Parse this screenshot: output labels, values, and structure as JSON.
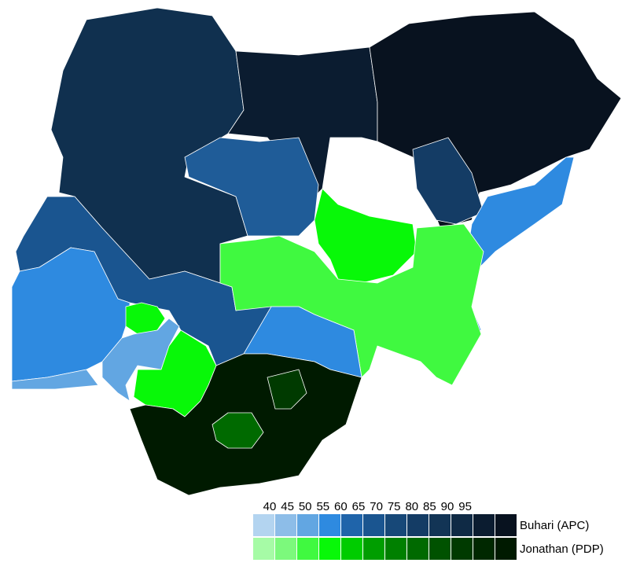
{
  "legend": {
    "ticks": [
      40,
      45,
      50,
      55,
      60,
      65,
      70,
      75,
      80,
      85,
      90,
      95
    ],
    "rows": [
      {
        "name": "Buhari (APC)",
        "colors": [
          "#b3d4f0",
          "#8dbde8",
          "#62a6e2",
          "#2e8ae0",
          "#1f64aa",
          "#1a5590",
          "#174878",
          "#143c65",
          "#123455",
          "#0f2a45",
          "#0b1c30",
          "#08121f"
        ]
      },
      {
        "name": "Jonathan (PDP)",
        "colors": [
          "#a6fba6",
          "#7cf97c",
          "#40f940",
          "#08f808",
          "#00cc00",
          "#009e00",
          "#008000",
          "#006a00",
          "#005200",
          "#003a00",
          "#002800",
          "#001a00"
        ]
      }
    ]
  }
}
